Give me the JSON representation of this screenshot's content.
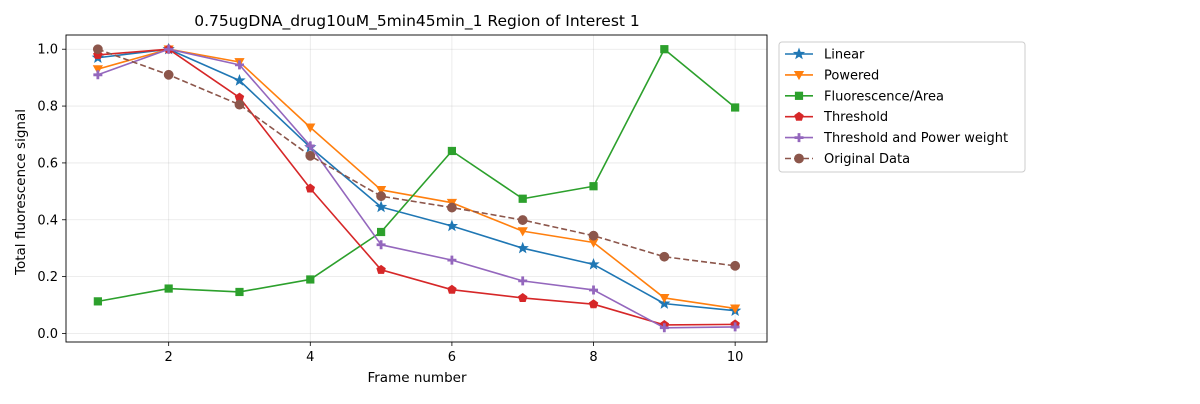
{
  "chart_data": {
    "type": "line",
    "title": "0.75ugDNA_drug10uM_5min45min_1 Region of Interest 1",
    "xlabel": "Frame number",
    "ylabel": "Total fluorescence signal",
    "xlim": [
      0.55,
      10.45
    ],
    "ylim": [
      -0.03,
      1.05
    ],
    "xticks": [
      2,
      4,
      6,
      8,
      10
    ],
    "yticks": [
      0.0,
      0.2,
      0.4,
      0.6,
      0.8,
      1.0
    ],
    "ytick_labels": [
      "0.0",
      "0.2",
      "0.4",
      "0.6",
      "0.8",
      "1.0"
    ],
    "grid": true,
    "legend_position": "outside-right-top",
    "x": [
      1,
      2,
      3,
      4,
      5,
      6,
      7,
      8,
      9,
      10
    ],
    "series": [
      {
        "name": "Linear",
        "color": "#1f77b4",
        "marker": "star",
        "dash": "solid",
        "values": [
          0.97,
          1.0,
          0.89,
          0.655,
          0.445,
          0.378,
          0.3,
          0.243,
          0.105,
          0.08
        ]
      },
      {
        "name": "Powered",
        "color": "#ff7f0e",
        "marker": "triangle-down",
        "dash": "solid",
        "values": [
          0.93,
          1.0,
          0.955,
          0.725,
          0.505,
          0.46,
          0.36,
          0.32,
          0.125,
          0.088
        ]
      },
      {
        "name": "Fluorescence/Area",
        "color": "#2ca02c",
        "marker": "square",
        "dash": "solid",
        "values": [
          0.113,
          0.158,
          0.146,
          0.19,
          0.357,
          0.642,
          0.474,
          0.518,
          1.0,
          0.795
        ]
      },
      {
        "name": "Threshold",
        "color": "#d62728",
        "marker": "pentagon",
        "dash": "solid",
        "values": [
          0.98,
          1.0,
          0.83,
          0.51,
          0.224,
          0.154,
          0.125,
          0.103,
          0.03,
          0.032
        ]
      },
      {
        "name": "Threshold and Power weight",
        "color": "#9467bd",
        "marker": "plus",
        "dash": "solid",
        "values": [
          0.91,
          1.0,
          0.945,
          0.66,
          0.312,
          0.258,
          0.185,
          0.153,
          0.02,
          0.023
        ]
      },
      {
        "name": "Original Data",
        "color": "#8c564b",
        "marker": "circle",
        "dash": "dashed",
        "values": [
          1.0,
          0.91,
          0.805,
          0.625,
          0.483,
          0.443,
          0.399,
          0.344,
          0.27,
          0.238
        ]
      }
    ]
  }
}
